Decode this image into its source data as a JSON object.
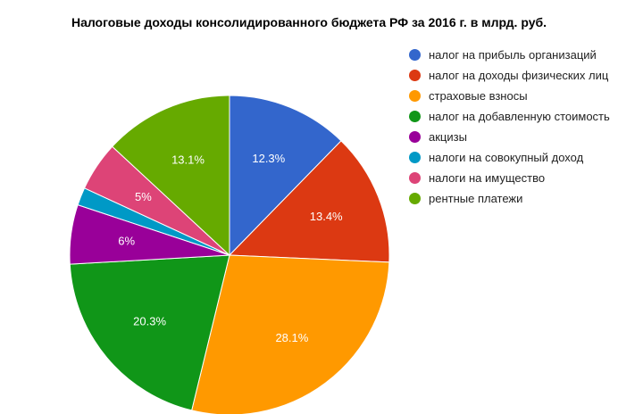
{
  "chart_data": {
    "type": "pie",
    "title": "Налоговые доходы консолидированного бюджета РФ за 2016 г. в млрд. руб.",
    "legend_position": "right",
    "slices": [
      {
        "name": "налог на прибыль организаций",
        "value": 12.3,
        "label": "12.3%",
        "color": "#3366cc"
      },
      {
        "name": "налог на доходы физических лиц",
        "value": 13.4,
        "label": "13.4%",
        "color": "#dc3912"
      },
      {
        "name": "страховые взносы",
        "value": 28.1,
        "label": "28.1%",
        "color": "#ff9900"
      },
      {
        "name": "налог на добавленную стоимость",
        "value": 20.3,
        "label": "20.3%",
        "color": "#109618"
      },
      {
        "name": "акцизы",
        "value": 6.0,
        "label": "6%",
        "color": "#990099"
      },
      {
        "name": "налоги на совокупный доход",
        "value": 1.8,
        "label": "",
        "color": "#0099c6"
      },
      {
        "name": "налоги на имущество",
        "value": 5.0,
        "label": "5%",
        "color": "#dd4477"
      },
      {
        "name": "рентные платежи",
        "value": 13.1,
        "label": "13.1%",
        "color": "#66aa00"
      }
    ]
  }
}
